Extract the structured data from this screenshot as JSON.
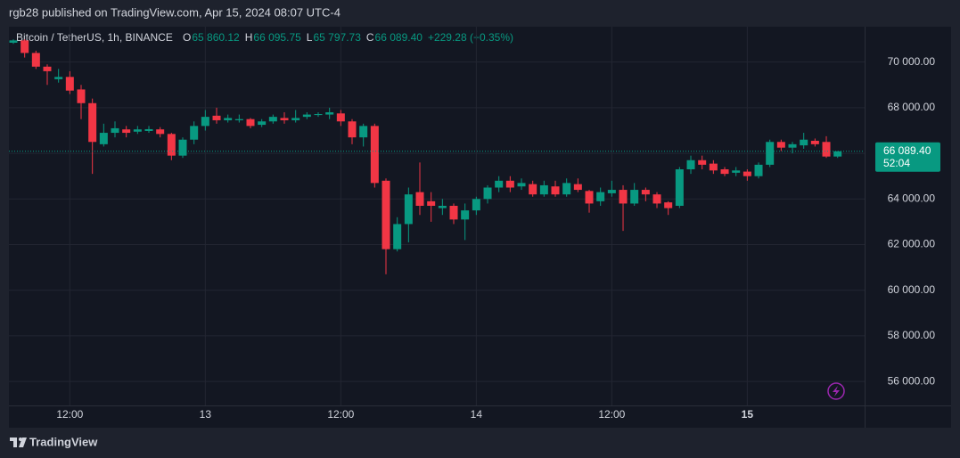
{
  "header": {
    "published": "rgb28 published on TradingView.com, Apr 15, 2024 08:07 UTC-4"
  },
  "chart_data": {
    "type": "candlestick",
    "title": "Bitcoin / TetherUS, 1h, BINANCE",
    "ohlc_keys": [
      "O",
      "H",
      "L",
      "C"
    ],
    "ohlc_values": [
      "65 860.12",
      "66 095.75",
      "65 797.73",
      "66 089.40"
    ],
    "change": "+229.28 (+0.35%)",
    "categories": [
      null,
      null,
      null,
      null,
      null,
      "12:00",
      null,
      null,
      null,
      null,
      null,
      null,
      null,
      null,
      null,
      null,
      null,
      "13",
      null,
      null,
      null,
      null,
      null,
      null,
      null,
      null,
      null,
      null,
      null,
      "12:00",
      null,
      null,
      null,
      null,
      null,
      null,
      null,
      null,
      null,
      null,
      null,
      "14",
      null,
      null,
      null,
      null,
      null,
      null,
      null,
      null,
      null,
      null,
      null,
      "12:00",
      null,
      null,
      null,
      null,
      null,
      null,
      null,
      null,
      null,
      null,
      null,
      "15",
      null,
      null,
      null,
      null,
      null,
      null,
      null,
      null
    ],
    "open": [
      70850,
      70950,
      70400,
      69800,
      69250,
      69350,
      68800,
      68200,
      66400,
      66900,
      67050,
      66950,
      66980,
      67050,
      66850,
      65900,
      66600,
      67200,
      67650,
      67450,
      67450,
      67500,
      67250,
      67400,
      67550,
      67450,
      67600,
      67680,
      67700,
      67750,
      67400,
      66700,
      67200,
      64800,
      61800,
      62900,
      64300,
      63900,
      63600,
      63700,
      63100,
      63500,
      64000,
      64500,
      64800,
      64550,
      64650,
      64200,
      64550,
      64200,
      64650,
      64350,
      63900,
      64250,
      64400,
      63800,
      64400,
      64200,
      63850,
      63700,
      65300,
      65700,
      65550,
      65300,
      65150,
      65200,
      65000,
      65500,
      66500,
      66250,
      66350,
      66550,
      66500,
      65860.12
    ],
    "high": [
      71000,
      71000,
      70500,
      69900,
      69700,
      69600,
      69000,
      68400,
      67300,
      67400,
      67200,
      67200,
      67200,
      67150,
      66900,
      66700,
      67400,
      67900,
      68000,
      67700,
      67700,
      67550,
      67500,
      67700,
      67800,
      67900,
      67800,
      67800,
      68000,
      67900,
      67500,
      67300,
      67300,
      64900,
      63200,
      64500,
      65600,
      64300,
      64000,
      63800,
      63800,
      64100,
      64600,
      65000,
      65000,
      64900,
      64800,
      64800,
      64800,
      64900,
      64900,
      64400,
      64500,
      64800,
      64600,
      64700,
      64500,
      64300,
      63900,
      65400,
      65900,
      65900,
      65700,
      65400,
      65400,
      65300,
      65600,
      66600,
      66600,
      66500,
      66900,
      66650,
      66750,
      66095.75
    ],
    "low": [
      70800,
      70200,
      69700,
      69000,
      69100,
      68600,
      67500,
      65100,
      66300,
      66700,
      66700,
      66850,
      66900,
      66700,
      65700,
      65800,
      66400,
      67000,
      67300,
      67350,
      67350,
      67100,
      67150,
      67300,
      67300,
      67350,
      67500,
      67600,
      67500,
      67200,
      66400,
      66300,
      64500,
      60700,
      61700,
      62100,
      63300,
      63000,
      63300,
      62900,
      62200,
      63300,
      63800,
      64300,
      64300,
      64400,
      64100,
      64100,
      64100,
      64100,
      64300,
      63400,
      63700,
      64100,
      62600,
      63700,
      63900,
      63600,
      63300,
      63600,
      65100,
      65300,
      65100,
      65000,
      65000,
      64800,
      64900,
      65400,
      66100,
      66000,
      66200,
      66300,
      65800,
      65797.73
    ],
    "close": [
      70950,
      70400,
      69800,
      69600,
      69350,
      68750,
      68200,
      66500,
      66900,
      67100,
      66900,
      67050,
      67060,
      66850,
      65900,
      66600,
      67200,
      67600,
      67450,
      67550,
      67500,
      67200,
      67400,
      67600,
      67450,
      67550,
      67700,
      67720,
      67800,
      67400,
      66700,
      67200,
      64700,
      61800,
      62900,
      64200,
      63700,
      63700,
      63700,
      63100,
      63500,
      64000,
      64500,
      64800,
      64500,
      64700,
      64200,
      64600,
      64200,
      64700,
      64400,
      63800,
      64300,
      64400,
      63800,
      64400,
      64200,
      63800,
      63600,
      65300,
      65700,
      65500,
      65250,
      65100,
      65250,
      65000,
      65500,
      66500,
      66250,
      66400,
      66600,
      66400,
      65860,
      66089.4
    ],
    "up_color": "#089981",
    "down_color": "#f23645",
    "ylim": [
      54950,
      71550
    ],
    "yticks": [
      {
        "value": 56000,
        "label": "56 000.00"
      },
      {
        "value": 58000,
        "label": "58 000.00"
      },
      {
        "value": 60000,
        "label": "60 000.00"
      },
      {
        "value": 62000,
        "label": "62 000.00"
      },
      {
        "value": 64000,
        "label": "64 000.00"
      },
      {
        "value": 66000,
        "label": "66 000.00"
      },
      {
        "value": 68000,
        "label": "68 000.00"
      },
      {
        "value": 70000,
        "label": "70 000.00"
      }
    ],
    "last_price": {
      "value": 66089.4,
      "label": "66 089.40"
    },
    "countdown": "52:04",
    "grid": true
  },
  "footer": {
    "brand": "TradingView"
  }
}
